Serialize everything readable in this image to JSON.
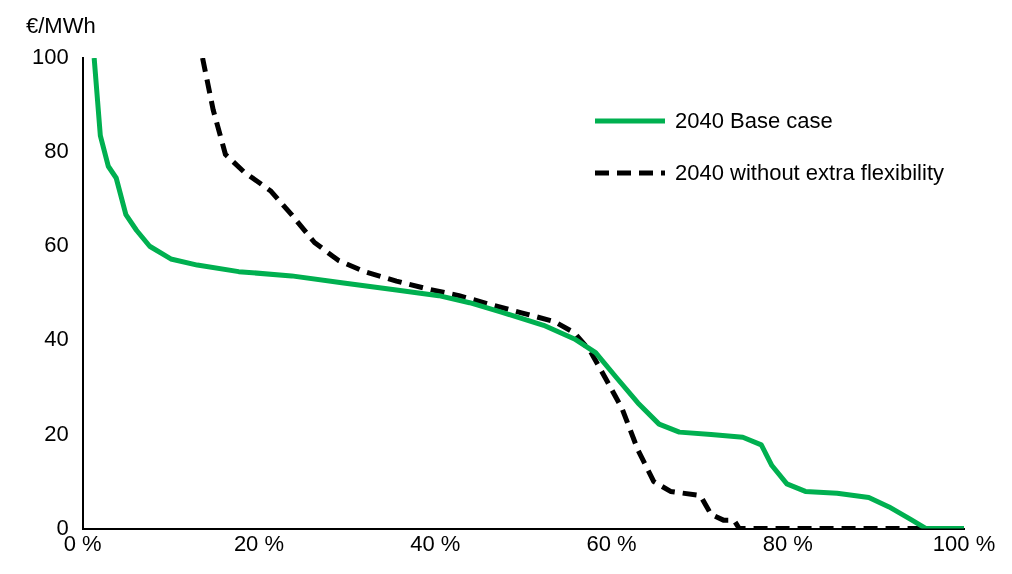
{
  "chart_data": {
    "type": "line",
    "ylabel": "€/MWh",
    "xlim": [
      0,
      100
    ],
    "ylim": [
      0,
      100
    ],
    "xticks": [
      {
        "value": 0,
        "label": "0 %"
      },
      {
        "value": 20,
        "label": "20 %"
      },
      {
        "value": 40,
        "label": "40 %"
      },
      {
        "value": 60,
        "label": "60 %"
      },
      {
        "value": 80,
        "label": "80 %"
      },
      {
        "value": 100,
        "label": "100 %"
      }
    ],
    "yticks": [
      0,
      20,
      40,
      60,
      80,
      100
    ],
    "grid": false,
    "legend": "top right",
    "marker": "none",
    "series": [
      {
        "name": "2040 Base case",
        "color": "#00b050",
        "line_style": "solid",
        "x": [
          1.3,
          2,
          2.9,
          3.8,
          4.9,
          6.1,
          7.6,
          10,
          13,
          17.7,
          23.7,
          29.6,
          35.6,
          40.4,
          43.9,
          47.5,
          52.3,
          55.8,
          58.2,
          60.6,
          63,
          65.4,
          67.7,
          71.3,
          74.9,
          77,
          78.2,
          79.9,
          82,
          85.6,
          89.2,
          91.5,
          93.9,
          95.7,
          100
        ],
        "values": [
          100,
          83.5,
          77,
          74.5,
          66.7,
          63.4,
          60,
          57.3,
          56,
          54.6,
          53.7,
          52.2,
          50.7,
          49.5,
          48,
          46,
          43.2,
          40.3,
          37.4,
          32,
          26.7,
          22.2,
          20.5,
          20,
          19.4,
          17.8,
          13.4,
          9.5,
          7.9,
          7.5,
          6.6,
          4.6,
          2,
          0,
          0
        ]
      },
      {
        "name": "2040 without extra flexibility",
        "color": "#000000",
        "line_style": "dashed",
        "x": [
          13.6,
          14.8,
          16.2,
          18.3,
          21.3,
          23.7,
          26.3,
          29,
          32,
          35.6,
          39.2,
          42.7,
          46.3,
          49.9,
          53.5,
          55.8,
          57.6,
          59.4,
          61.2,
          63,
          64.8,
          66.7,
          70.1,
          71.3,
          72.7,
          73.9,
          74.5,
          100
        ],
        "values": [
          100,
          89,
          79.5,
          75.8,
          71.8,
          66.7,
          60.8,
          57,
          54.6,
          52.6,
          50.9,
          49.5,
          47.6,
          45.8,
          44,
          41.6,
          37.7,
          31.7,
          25.5,
          16.7,
          10,
          7.9,
          7,
          3,
          1.8,
          1.8,
          0,
          0
        ]
      }
    ]
  }
}
